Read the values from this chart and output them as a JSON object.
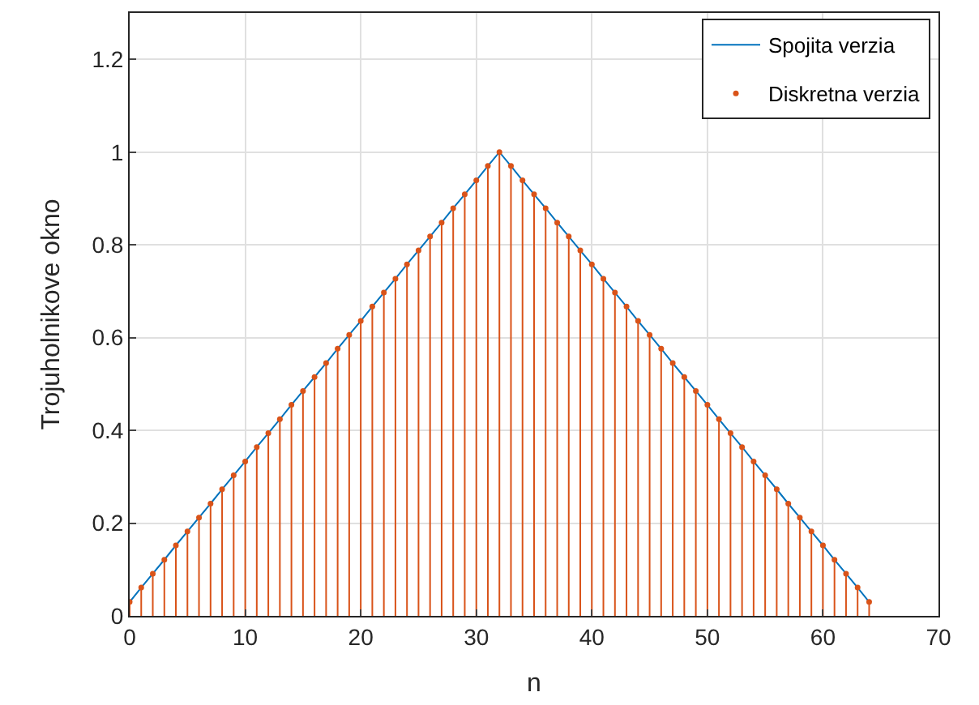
{
  "chart_data": {
    "type": "line",
    "xlabel": "n",
    "ylabel": "Trojuholnikove okno",
    "x": [
      0,
      1,
      2,
      3,
      4,
      5,
      6,
      7,
      8,
      9,
      10,
      11,
      12,
      13,
      14,
      15,
      16,
      17,
      18,
      19,
      20,
      21,
      22,
      23,
      24,
      25,
      26,
      27,
      28,
      29,
      30,
      31,
      32,
      33,
      34,
      35,
      36,
      37,
      38,
      39,
      40,
      41,
      42,
      43,
      44,
      45,
      46,
      47,
      48,
      49,
      50,
      51,
      52,
      53,
      54,
      55,
      56,
      57,
      58,
      59,
      60,
      61,
      62,
      63,
      64
    ],
    "series": [
      {
        "name": "Spojita verzia",
        "color": "#0072bd",
        "marker": "none",
        "values": [
          0.03,
          0.061,
          0.091,
          0.121,
          0.152,
          0.182,
          0.212,
          0.242,
          0.273,
          0.303,
          0.333,
          0.364,
          0.394,
          0.424,
          0.455,
          0.485,
          0.515,
          0.545,
          0.576,
          0.606,
          0.636,
          0.667,
          0.697,
          0.727,
          0.758,
          0.788,
          0.818,
          0.848,
          0.879,
          0.909,
          0.939,
          0.97,
          1.0,
          0.97,
          0.939,
          0.909,
          0.879,
          0.848,
          0.818,
          0.788,
          0.758,
          0.727,
          0.697,
          0.667,
          0.636,
          0.606,
          0.576,
          0.545,
          0.515,
          0.485,
          0.455,
          0.424,
          0.394,
          0.364,
          0.333,
          0.303,
          0.273,
          0.242,
          0.212,
          0.182,
          0.152,
          0.121,
          0.091,
          0.061,
          0.03
        ]
      },
      {
        "name": "Diskretna verzia",
        "type": "lollipop",
        "color": "#d95319",
        "marker": "circle",
        "values": [
          0.03,
          0.061,
          0.091,
          0.121,
          0.152,
          0.182,
          0.212,
          0.242,
          0.273,
          0.303,
          0.333,
          0.364,
          0.394,
          0.424,
          0.455,
          0.485,
          0.515,
          0.545,
          0.576,
          0.606,
          0.636,
          0.667,
          0.697,
          0.727,
          0.758,
          0.788,
          0.818,
          0.848,
          0.879,
          0.909,
          0.939,
          0.97,
          1.0,
          0.97,
          0.939,
          0.909,
          0.879,
          0.848,
          0.818,
          0.788,
          0.758,
          0.727,
          0.697,
          0.667,
          0.636,
          0.606,
          0.576,
          0.545,
          0.515,
          0.485,
          0.455,
          0.424,
          0.394,
          0.364,
          0.333,
          0.303,
          0.273,
          0.242,
          0.212,
          0.182,
          0.152,
          0.121,
          0.091,
          0.061,
          0.03
        ]
      }
    ],
    "xlim": [
      0,
      70
    ],
    "xticks": [
      0,
      10,
      20,
      30,
      40,
      50,
      60,
      70
    ],
    "ylim": [
      0,
      1.3
    ],
    "yticks": [
      0,
      0.2,
      0.4,
      0.6,
      0.8,
      1,
      1.2
    ],
    "grid": true,
    "legend": "top right"
  }
}
